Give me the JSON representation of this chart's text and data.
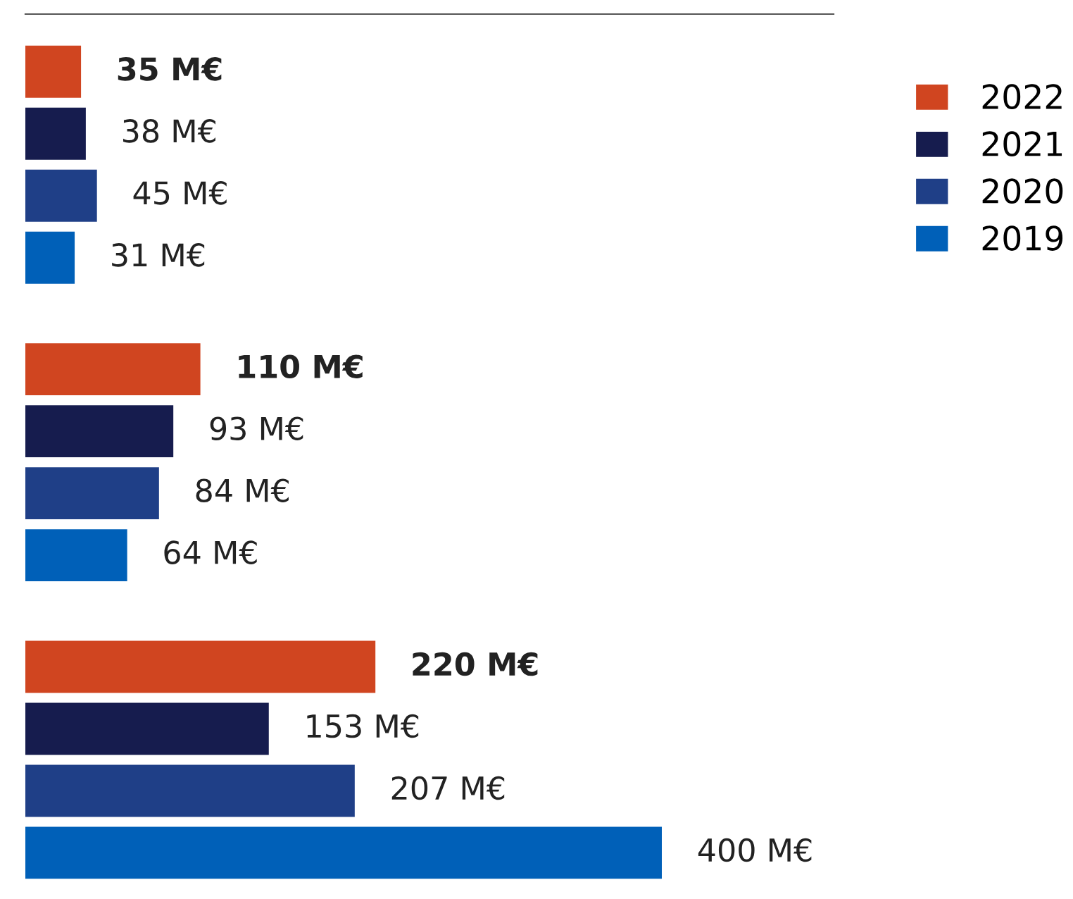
{
  "chart_data": {
    "type": "bar",
    "orientation": "horizontal",
    "categories": [
      null,
      null,
      null
    ],
    "series": [
      {
        "name": "2022",
        "color": "#d04520",
        "values": [
          35,
          110,
          220
        ],
        "value_labels": [
          "35 M€",
          "110 M€",
          "220 M€"
        ]
      },
      {
        "name": "2021",
        "color": "#161c4e",
        "values": [
          38,
          93,
          153
        ],
        "value_labels": [
          "38 M€",
          "93 M€",
          "153 M€"
        ]
      },
      {
        "name": "2020",
        "color": "#1f3f87",
        "values": [
          45,
          84,
          207
        ],
        "value_labels": [
          "45 M€",
          "84 M€",
          "207 M€"
        ]
      },
      {
        "name": "2019",
        "color": "#0060b8",
        "values": [
          31,
          64,
          400
        ],
        "value_labels": [
          "31 M€",
          "64 M€",
          "400 M€"
        ]
      }
    ],
    "legend": "right",
    "grid": false
  }
}
